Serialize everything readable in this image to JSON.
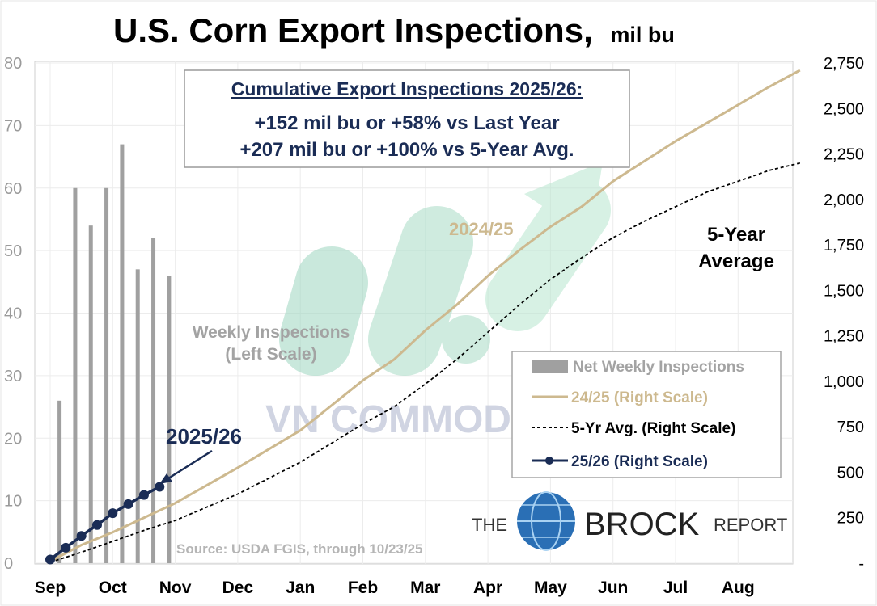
{
  "chart_data": {
    "type": "bar+line",
    "title": "U.S. Corn Export Inspections,",
    "title_unit": "mil bu",
    "x_ticks": [
      "Sep",
      "Oct",
      "Nov",
      "Dec",
      "Jan",
      "Feb",
      "Mar",
      "Apr",
      "May",
      "Jun",
      "Jul",
      "Aug"
    ],
    "left_axis": {
      "min": 0,
      "max": 80,
      "ticks": [
        "0",
        "10",
        "20",
        "30",
        "40",
        "50",
        "60",
        "70",
        "80"
      ]
    },
    "right_axis": {
      "min": 0,
      "max": 2750,
      "ticks": [
        "-",
        "250",
        "500",
        "750",
        "1,000",
        "1,250",
        "1,500",
        "1,750",
        "2,000",
        "2,250",
        "2,500",
        "2,750"
      ]
    },
    "weekly_bars": {
      "name": "Net Weekly Inspections",
      "weeks": [
        0.15,
        0.4,
        0.65,
        0.9,
        1.15,
        1.4,
        1.65,
        1.9
      ],
      "values": [
        26,
        60,
        54,
        60,
        67,
        47,
        52,
        46
      ]
    },
    "series": [
      {
        "name": "24/25 (Right Scale)",
        "color": "#cdb98f",
        "x_month": [
          0,
          0.5,
          1,
          1.5,
          2,
          3,
          4,
          5,
          5.5,
          6,
          6.5,
          7,
          7.5,
          8,
          8.5,
          9,
          9.5,
          10,
          10.5,
          11,
          11.5,
          11.99
        ],
        "y": [
          10,
          100,
          170,
          250,
          330,
          525,
          730,
          1005,
          1120,
          1280,
          1420,
          1580,
          1720,
          1850,
          1960,
          2100,
          2210,
          2320,
          2420,
          2520,
          2620,
          2710
        ]
      },
      {
        "name": "5-Yr Avg. (Right Scale)",
        "color": "#000000",
        "x_month": [
          0,
          0.5,
          1,
          1.5,
          2,
          3,
          4,
          5,
          5.5,
          6,
          6.5,
          7,
          7.5,
          8,
          8.5,
          9,
          9.5,
          10,
          10.5,
          11,
          11.5,
          11.99
        ],
        "y": [
          5,
          60,
          120,
          180,
          235,
          380,
          555,
          765,
          860,
          985,
          1120,
          1270,
          1420,
          1560,
          1680,
          1790,
          1880,
          1960,
          2040,
          2100,
          2160,
          2200
        ]
      },
      {
        "name": "25/26 (Right Scale)",
        "color": "#1a2c55",
        "x_month": [
          0,
          0.25,
          0.5,
          0.75,
          1,
          1.25,
          1.5,
          1.75
        ],
        "y": [
          20,
          85,
          150,
          210,
          275,
          325,
          375,
          420
        ]
      }
    ],
    "annotations": {
      "box_title": "Cumulative Export Inspections 2025/26:",
      "box_line1": "+152 mil bu or +58% vs Last Year",
      "box_line2": "+207 mil bu or +100% vs 5-Year Avg.",
      "label_2425": "2024/25",
      "label_5yr_1": "5-Year",
      "label_5yr_2": "Average",
      "label_weekly_1": "Weekly Inspections",
      "label_weekly_2": "(Left Scale)",
      "label_2526": "2025/26",
      "source": "Source: USDA FGIS, through 10/23/25"
    },
    "legend": {
      "placement": "bottom-right",
      "entries": [
        "Net Weekly Inspections",
        "24/25 (Right Scale)",
        "5-Yr Avg. (Right Scale)",
        "25/26 (Right Scale)"
      ]
    },
    "grid": true
  },
  "branding": {
    "the": "THE",
    "brock": "BROCK",
    "report": "REPORT",
    "watermark": "VN COMMODITIES"
  }
}
